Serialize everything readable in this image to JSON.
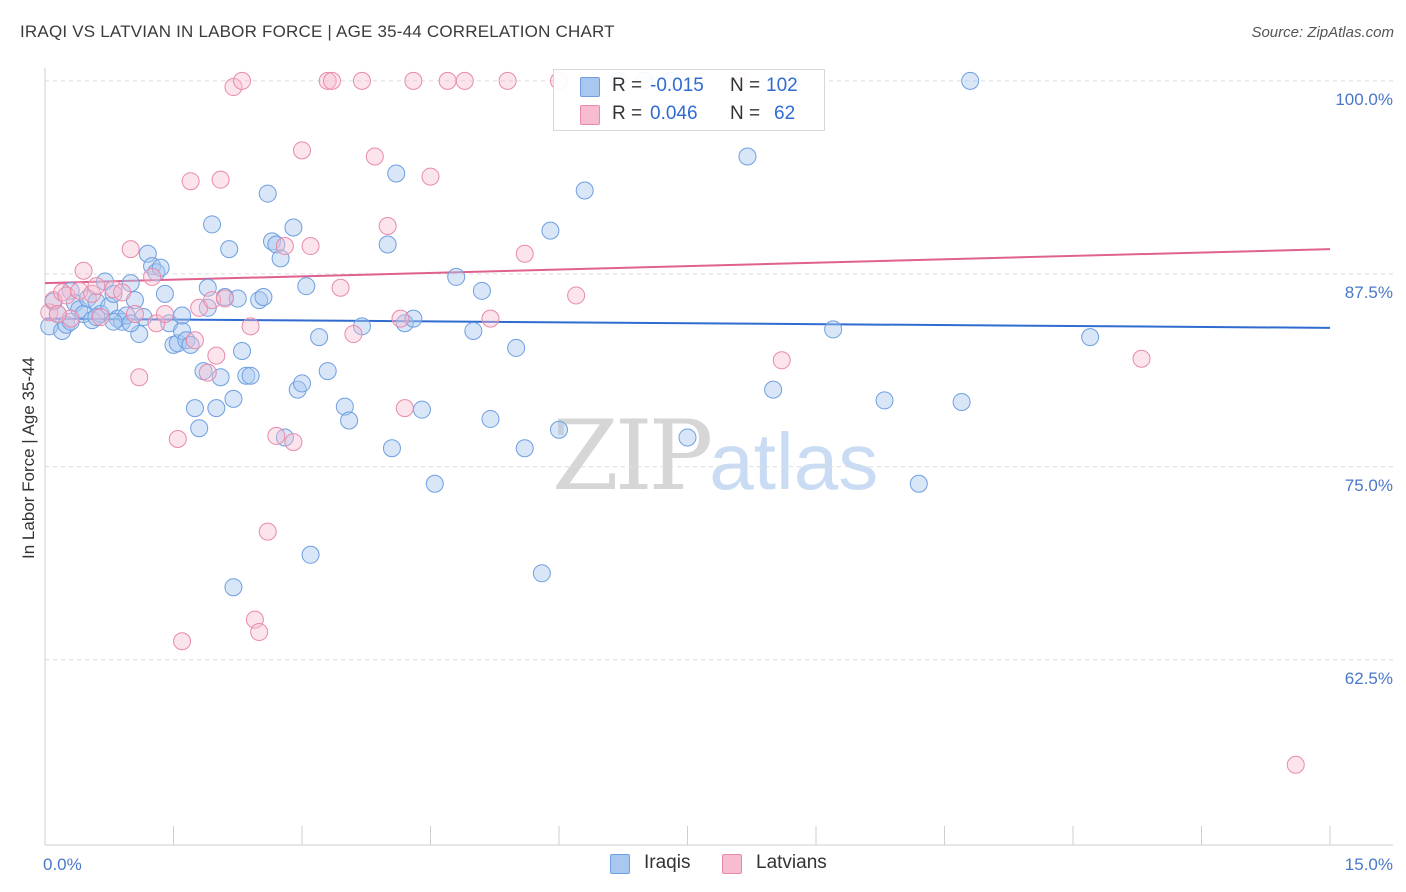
{
  "title": "IRAQI VS LATVIAN IN LABOR FORCE | AGE 35-44 CORRELATION CHART",
  "source": "Source: ZipAtlas.com",
  "watermark": {
    "zip": "ZIP",
    "atlas": "atlas"
  },
  "legend": {
    "rows": [
      {
        "r_label": "R =",
        "r_value": "-0.015",
        "n_label": "N =",
        "n_value": "102",
        "color": "#a9c8f0",
        "border": "#6f9fe0"
      },
      {
        "r_label": "R =",
        "r_value": "0.046",
        "n_label": "N =",
        "n_value": "62",
        "color": "#f7bcd0",
        "border": "#e98aab"
      }
    ]
  },
  "bottom_legend": [
    {
      "name": "Iraqis",
      "color": "#a9c8f0",
      "border": "#6f9fe0"
    },
    {
      "name": "Latvians",
      "color": "#f7bcd0",
      "border": "#e98aab"
    }
  ],
  "chart_data": {
    "type": "scatter",
    "title": "IRAQI VS LATVIAN IN LABOR FORCE | AGE 35-44 CORRELATION CHART",
    "xlabel": "",
    "ylabel": "In Labor Force | Age 35-44",
    "xlim": [
      0,
      15
    ],
    "ylim": [
      50.5,
      102
    ],
    "x_tick_labels": {
      "left": "0.0%",
      "right": "15.0%"
    },
    "y_ticks": [
      {
        "value": 100,
        "label": "100.0%"
      },
      {
        "value": 87.5,
        "label": "87.5%"
      },
      {
        "value": 75,
        "label": "75.0%"
      },
      {
        "value": 62.5,
        "label": "62.5%"
      }
    ],
    "grid": "horizontal dashed",
    "legend_placement": "top-center",
    "series": [
      {
        "name": "Iraqis",
        "color": "#6f9fe0",
        "fill": "rgba(169,200,240,0.45)",
        "trend": {
          "x": [
            0,
            15
          ],
          "y": [
            84.6,
            84.0
          ],
          "color": "#2f6bd0"
        },
        "points": [
          [
            0.05,
            84.1
          ],
          [
            0.1,
            85.7
          ],
          [
            0.15,
            84.9
          ],
          [
            0.2,
            83.8
          ],
          [
            0.25,
            84.2
          ],
          [
            0.3,
            86.4
          ],
          [
            0.35,
            85.6
          ],
          [
            0.4,
            85.2
          ],
          [
            0.45,
            84.9
          ],
          [
            0.5,
            85.9
          ],
          [
            0.55,
            84.5
          ],
          [
            0.6,
            85.7
          ],
          [
            0.65,
            84.9
          ],
          [
            0.7,
            87.0
          ],
          [
            0.75,
            85.4
          ],
          [
            0.8,
            86.2
          ],
          [
            0.85,
            84.6
          ],
          [
            0.9,
            84.4
          ],
          [
            0.95,
            84.8
          ],
          [
            1.0,
            86.9
          ],
          [
            1.05,
            85.8
          ],
          [
            1.1,
            83.6
          ],
          [
            1.15,
            84.7
          ],
          [
            1.2,
            88.8
          ],
          [
            1.25,
            88.0
          ],
          [
            1.3,
            87.6
          ],
          [
            1.35,
            87.9
          ],
          [
            1.4,
            86.2
          ],
          [
            1.45,
            84.3
          ],
          [
            1.5,
            82.9
          ],
          [
            1.55,
            83.0
          ],
          [
            1.6,
            83.8
          ],
          [
            1.65,
            83.2
          ],
          [
            1.7,
            82.9
          ],
          [
            1.75,
            78.8
          ],
          [
            1.8,
            77.5
          ],
          [
            1.85,
            81.2
          ],
          [
            1.9,
            86.6
          ],
          [
            1.95,
            90.7
          ],
          [
            2.0,
            78.8
          ],
          [
            2.05,
            80.8
          ],
          [
            2.1,
            86.0
          ],
          [
            2.15,
            89.1
          ],
          [
            2.2,
            79.4
          ],
          [
            2.25,
            85.9
          ],
          [
            2.3,
            82.5
          ],
          [
            2.35,
            80.9
          ],
          [
            2.4,
            80.9
          ],
          [
            2.5,
            85.8
          ],
          [
            2.55,
            86.0
          ],
          [
            2.6,
            92.7
          ],
          [
            2.65,
            89.6
          ],
          [
            2.7,
            89.4
          ],
          [
            2.75,
            88.5
          ],
          [
            2.8,
            76.9
          ],
          [
            2.9,
            90.5
          ],
          [
            2.95,
            80.0
          ],
          [
            3.0,
            80.4
          ],
          [
            3.05,
            86.7
          ],
          [
            3.1,
            69.3
          ],
          [
            3.2,
            83.4
          ],
          [
            3.5,
            78.9
          ],
          [
            3.55,
            78.0
          ],
          [
            3.7,
            84.1
          ],
          [
            4.0,
            89.4
          ],
          [
            4.05,
            76.2
          ],
          [
            4.1,
            94.0
          ],
          [
            4.2,
            84.3
          ],
          [
            4.3,
            84.6
          ],
          [
            4.4,
            78.7
          ],
          [
            4.55,
            73.9
          ],
          [
            4.8,
            87.3
          ],
          [
            5.0,
            83.8
          ],
          [
            5.1,
            86.4
          ],
          [
            5.2,
            78.1
          ],
          [
            5.5,
            82.7
          ],
          [
            5.6,
            76.2
          ],
          [
            5.8,
            68.1
          ],
          [
            5.9,
            90.3
          ],
          [
            6.3,
            92.9
          ],
          [
            6.7,
            100.0
          ],
          [
            7.0,
            100.0
          ],
          [
            7.3,
            100.0
          ],
          [
            8.2,
            95.1
          ],
          [
            8.5,
            80.0
          ],
          [
            8.7,
            100.0
          ],
          [
            9.2,
            83.9
          ],
          [
            9.8,
            79.3
          ],
          [
            10.2,
            73.9
          ],
          [
            10.7,
            79.2
          ],
          [
            10.8,
            100.0
          ],
          [
            12.2,
            83.4
          ],
          [
            0.3,
            84.4
          ],
          [
            0.6,
            84.7
          ],
          [
            0.8,
            84.4
          ],
          [
            1.0,
            84.3
          ],
          [
            1.6,
            84.8
          ],
          [
            1.9,
            85.3
          ],
          [
            3.3,
            81.2
          ],
          [
            6.0,
            77.4
          ],
          [
            7.5,
            76.9
          ],
          [
            2.2,
            67.2
          ]
        ]
      },
      {
        "name": "Latvians",
        "color": "#e98aab",
        "fill": "rgba(247,188,208,0.40)",
        "trend": {
          "x": [
            0,
            15
          ],
          "y": [
            86.9,
            89.1
          ],
          "color": "#e0608f"
        },
        "points": [
          [
            0.05,
            85.0
          ],
          [
            0.1,
            85.8
          ],
          [
            0.2,
            86.3
          ],
          [
            0.25,
            86.1
          ],
          [
            0.3,
            84.6
          ],
          [
            0.4,
            86.4
          ],
          [
            0.45,
            87.7
          ],
          [
            0.55,
            86.2
          ],
          [
            0.6,
            86.7
          ],
          [
            0.65,
            84.7
          ],
          [
            0.8,
            86.5
          ],
          [
            0.9,
            86.3
          ],
          [
            1.0,
            89.1
          ],
          [
            1.05,
            84.9
          ],
          [
            1.1,
            80.8
          ],
          [
            1.25,
            87.3
          ],
          [
            1.3,
            84.3
          ],
          [
            1.4,
            84.9
          ],
          [
            1.55,
            76.8
          ],
          [
            1.6,
            63.7
          ],
          [
            1.7,
            93.5
          ],
          [
            1.75,
            83.2
          ],
          [
            1.8,
            85.3
          ],
          [
            1.9,
            81.1
          ],
          [
            1.95,
            85.8
          ],
          [
            2.0,
            82.2
          ],
          [
            2.05,
            93.6
          ],
          [
            2.1,
            85.9
          ],
          [
            2.2,
            99.6
          ],
          [
            2.3,
            100.0
          ],
          [
            2.4,
            84.1
          ],
          [
            2.45,
            65.1
          ],
          [
            2.5,
            64.3
          ],
          [
            2.6,
            70.8
          ],
          [
            2.7,
            77.0
          ],
          [
            2.8,
            89.3
          ],
          [
            2.9,
            76.6
          ],
          [
            3.0,
            95.5
          ],
          [
            3.1,
            89.3
          ],
          [
            3.3,
            100.0
          ],
          [
            3.35,
            100.0
          ],
          [
            3.45,
            86.6
          ],
          [
            3.6,
            83.6
          ],
          [
            3.7,
            100.0
          ],
          [
            3.85,
            95.1
          ],
          [
            4.0,
            90.6
          ],
          [
            4.15,
            84.6
          ],
          [
            4.2,
            78.8
          ],
          [
            4.3,
            100.0
          ],
          [
            4.5,
            93.8
          ],
          [
            4.7,
            100.0
          ],
          [
            4.9,
            100.0
          ],
          [
            5.2,
            84.6
          ],
          [
            5.4,
            100.0
          ],
          [
            5.6,
            88.8
          ],
          [
            6.0,
            100.0
          ],
          [
            6.2,
            86.1
          ],
          [
            8.6,
            81.9
          ],
          [
            8.1,
            100.0
          ],
          [
            12.8,
            82.0
          ],
          [
            14.6,
            55.7
          ],
          [
            0.15,
            84.9
          ]
        ]
      }
    ]
  }
}
